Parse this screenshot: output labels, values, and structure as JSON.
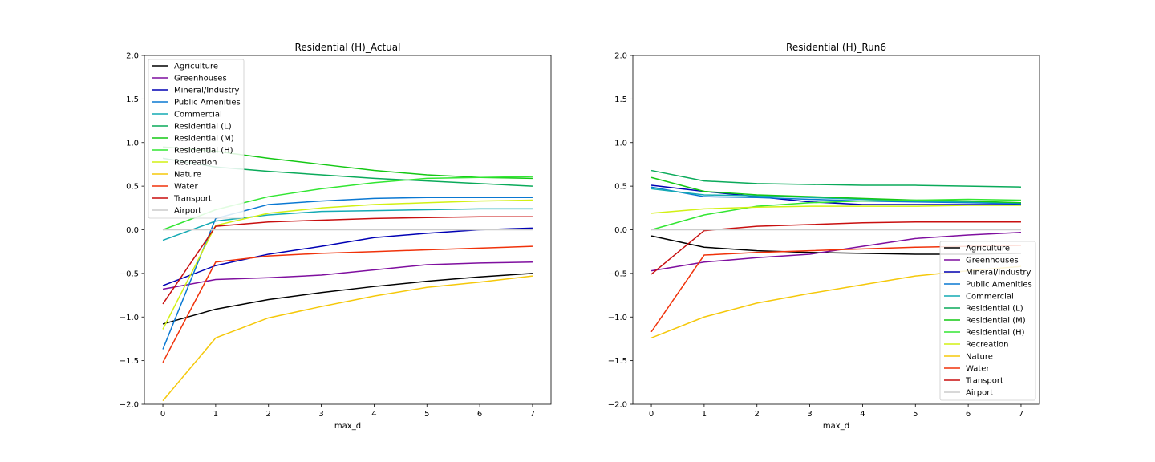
{
  "chart_data": [
    {
      "type": "line",
      "title": "Residential (H)_Actual",
      "xlabel": "max_d",
      "ylabel": "",
      "x": [
        0,
        1,
        2,
        3,
        4,
        5,
        6,
        7
      ],
      "xticks": [
        "0",
        "1",
        "2",
        "3",
        "4",
        "5",
        "6",
        "7"
      ],
      "yticks": [
        "−2.0",
        "−1.5",
        "−1.0",
        "−0.5",
        "0.0",
        "0.5",
        "1.0",
        "1.5",
        "2.0"
      ],
      "xlim": [
        -0.35,
        7.35
      ],
      "ylim": [
        -2.0,
        2.0
      ],
      "grid": false,
      "legend_position": "upper-left",
      "series": [
        {
          "name": "Agriculture",
          "color": "#000000",
          "values": [
            -1.08,
            -0.91,
            -0.8,
            -0.72,
            -0.65,
            -0.59,
            -0.54,
            -0.5
          ]
        },
        {
          "name": "Greenhouses",
          "color": "#7f0f9f",
          "values": [
            -0.68,
            -0.57,
            -0.55,
            -0.52,
            -0.46,
            -0.4,
            -0.38,
            -0.37
          ]
        },
        {
          "name": "Mineral/Industry",
          "color": "#0000b4",
          "values": [
            -0.64,
            -0.41,
            -0.28,
            -0.19,
            -0.09,
            -0.04,
            0.0,
            0.02
          ]
        },
        {
          "name": "Public Amenities",
          "color": "#0a78d2",
          "values": [
            -1.37,
            0.13,
            0.29,
            0.33,
            0.36,
            0.37,
            0.37,
            0.37
          ]
        },
        {
          "name": "Commercial",
          "color": "#14aab4",
          "values": [
            -0.12,
            0.1,
            0.17,
            0.21,
            0.22,
            0.23,
            0.24,
            0.24
          ]
        },
        {
          "name": "Residential (L)",
          "color": "#0aaa5a",
          "values": [
            0.82,
            0.72,
            0.67,
            0.63,
            0.59,
            0.56,
            0.53,
            0.5
          ]
        },
        {
          "name": "Residential (M)",
          "color": "#14c814",
          "values": [
            0.95,
            0.9,
            0.82,
            0.75,
            0.68,
            0.63,
            0.6,
            0.59
          ]
        },
        {
          "name": "Residential (H)",
          "color": "#32e632",
          "values": [
            0.0,
            0.23,
            0.38,
            0.47,
            0.54,
            0.59,
            0.6,
            0.61
          ]
        },
        {
          "name": "Recreation",
          "color": "#d2f014",
          "values": [
            -1.14,
            0.05,
            0.19,
            0.25,
            0.29,
            0.31,
            0.33,
            0.34
          ]
        },
        {
          "name": "Nature",
          "color": "#f5c80a",
          "values": [
            -1.96,
            -1.24,
            -1.01,
            -0.88,
            -0.76,
            -0.66,
            -0.6,
            -0.53
          ]
        },
        {
          "name": "Water",
          "color": "#f0320a",
          "values": [
            -1.52,
            -0.37,
            -0.3,
            -0.27,
            -0.25,
            -0.23,
            -0.21,
            -0.19
          ]
        },
        {
          "name": "Transport",
          "color": "#c80f0f",
          "values": [
            -0.85,
            0.04,
            0.09,
            0.11,
            0.13,
            0.14,
            0.15,
            0.15
          ]
        },
        {
          "name": "Airport",
          "color": "#cccccc",
          "values": [
            0.0,
            0.0,
            0.0,
            0.0,
            0.0,
            0.0,
            0.0,
            0.0
          ]
        }
      ]
    },
    {
      "type": "line",
      "title": "Residential (H)_Run6",
      "xlabel": "max_d",
      "ylabel": "",
      "x": [
        0,
        1,
        2,
        3,
        4,
        5,
        6,
        7
      ],
      "xticks": [
        "0",
        "1",
        "2",
        "3",
        "4",
        "5",
        "6",
        "7"
      ],
      "yticks": [
        "−2.0",
        "−1.5",
        "−1.0",
        "−0.5",
        "0.0",
        "0.5",
        "1.0",
        "1.5",
        "2.0"
      ],
      "xlim": [
        -0.35,
        7.35
      ],
      "ylim": [
        -2.0,
        2.0
      ],
      "grid": false,
      "legend_position": "lower-right",
      "series": [
        {
          "name": "Agriculture",
          "color": "#000000",
          "values": [
            -0.07,
            -0.2,
            -0.24,
            -0.26,
            -0.27,
            -0.28,
            -0.28,
            -0.27
          ]
        },
        {
          "name": "Greenhouses",
          "color": "#7f0f9f",
          "values": [
            -0.47,
            -0.37,
            -0.32,
            -0.28,
            -0.19,
            -0.1,
            -0.06,
            -0.03
          ]
        },
        {
          "name": "Mineral/Industry",
          "color": "#0000b4",
          "values": [
            0.51,
            0.44,
            0.38,
            0.32,
            0.29,
            0.29,
            0.29,
            0.29
          ]
        },
        {
          "name": "Public Amenities",
          "color": "#0a78d2",
          "values": [
            0.49,
            0.38,
            0.37,
            0.35,
            0.33,
            0.32,
            0.31,
            0.3
          ]
        },
        {
          "name": "Commercial",
          "color": "#14aab4",
          "values": [
            0.47,
            0.4,
            0.39,
            0.37,
            0.35,
            0.33,
            0.32,
            0.31
          ]
        },
        {
          "name": "Residential (L)",
          "color": "#0aaa5a",
          "values": [
            0.68,
            0.56,
            0.53,
            0.52,
            0.51,
            0.51,
            0.5,
            0.49
          ]
        },
        {
          "name": "Residential (M)",
          "color": "#14c814",
          "values": [
            0.6,
            0.44,
            0.4,
            0.38,
            0.36,
            0.34,
            0.33,
            0.31
          ]
        },
        {
          "name": "Residential (H)",
          "color": "#32e632",
          "values": [
            0.0,
            0.17,
            0.27,
            0.31,
            0.33,
            0.34,
            0.35,
            0.34
          ]
        },
        {
          "name": "Recreation",
          "color": "#d2f014",
          "values": [
            0.19,
            0.24,
            0.26,
            0.27,
            0.27,
            0.27,
            0.28,
            0.28
          ]
        },
        {
          "name": "Nature",
          "color": "#f5c80a",
          "values": [
            -1.24,
            -1.0,
            -0.84,
            -0.73,
            -0.63,
            -0.53,
            -0.47,
            -0.42
          ]
        },
        {
          "name": "Water",
          "color": "#f0320a",
          "values": [
            -1.17,
            -0.29,
            -0.26,
            -0.24,
            -0.22,
            -0.2,
            -0.19,
            -0.18
          ]
        },
        {
          "name": "Transport",
          "color": "#c80f0f",
          "values": [
            -0.51,
            -0.01,
            0.04,
            0.06,
            0.08,
            0.09,
            0.09,
            0.09
          ]
        },
        {
          "name": "Airport",
          "color": "#cccccc",
          "values": [
            0.0,
            0.0,
            0.0,
            0.0,
            0.0,
            0.0,
            0.0,
            0.0
          ]
        }
      ]
    }
  ]
}
